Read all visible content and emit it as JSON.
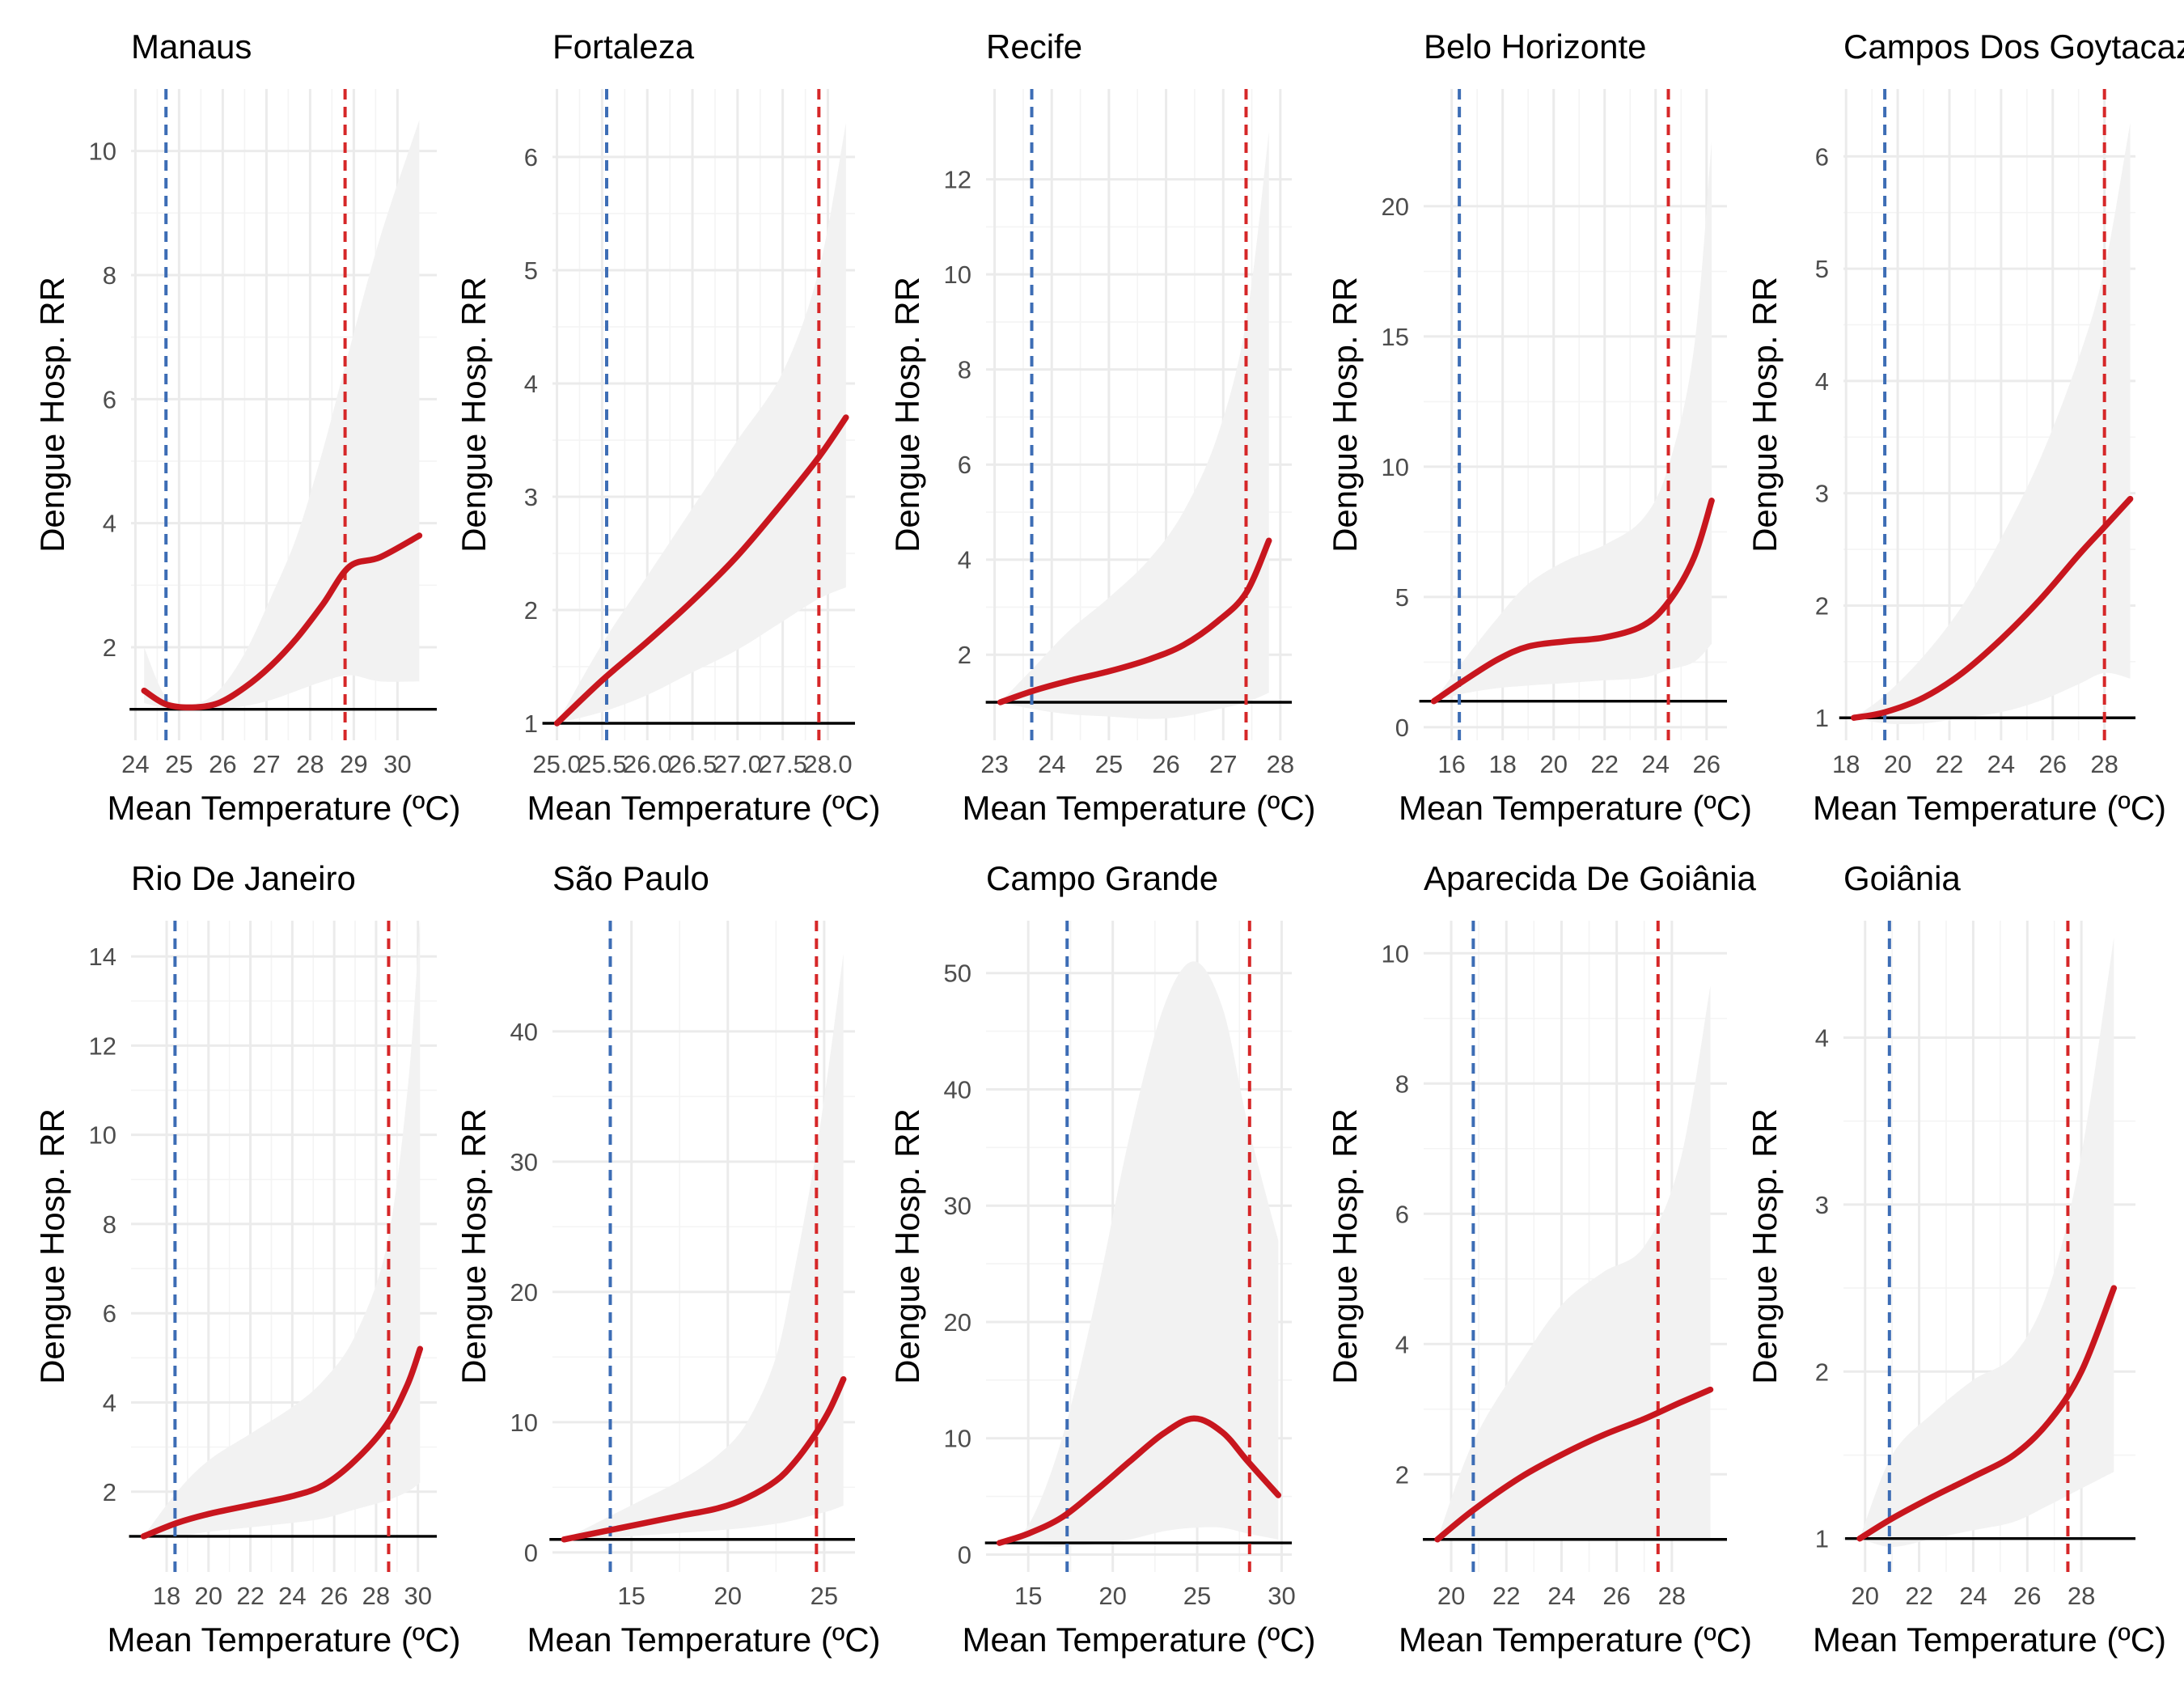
{
  "colors": {
    "curve": "#c8161e",
    "band": "#f2f2f2",
    "cold_line": "#3d6db5",
    "hot_line": "#d62728",
    "reference": "#000000",
    "grid": "#ebebeb"
  },
  "chart_data": [
    {
      "type": "line",
      "title": "Manaus",
      "xlabel": "Mean Temperature (ºC)",
      "ylabel": "Dengue Hosp. RR",
      "xlim": [
        23.9,
        30.9
      ],
      "ylim": [
        0.5,
        11
      ],
      "xticks": [
        24,
        25,
        26,
        27,
        28,
        29,
        30
      ],
      "xtick_labels": [
        "24",
        "25",
        "26",
        "27",
        "28",
        "29",
        "30"
      ],
      "yticks": [
        2,
        4,
        6,
        8,
        10
      ],
      "ytick_labels": [
        "2",
        "4",
        "6",
        "8",
        "10"
      ],
      "reference_y": 1,
      "vlines": {
        "cold": 24.7,
        "hot": 28.8
      },
      "x": [
        24.2,
        24.7,
        25.3,
        25.9,
        26.5,
        27.1,
        27.7,
        28.3,
        28.9,
        29.6,
        30.5
      ],
      "y": [
        1.3,
        1.08,
        1.03,
        1.1,
        1.35,
        1.7,
        2.15,
        2.7,
        3.3,
        3.45,
        3.8
      ],
      "ci_lower": [
        1.1,
        1.02,
        1.0,
        1.0,
        1.05,
        1.15,
        1.3,
        1.45,
        1.55,
        1.45,
        1.45
      ],
      "ci_upper": [
        2.0,
        1.2,
        1.08,
        1.3,
        1.9,
        2.8,
        3.8,
        5.2,
        6.8,
        8.6,
        10.5
      ]
    },
    {
      "type": "line",
      "title": "Fortaleza",
      "xlabel": "Mean Temperature (ºC)",
      "ylabel": "Dengue Hosp. RR",
      "xlim": [
        24.95,
        28.3
      ],
      "ylim": [
        0.85,
        6.6
      ],
      "xticks": [
        25.0,
        25.5,
        26.0,
        26.5,
        27.0,
        27.5,
        28.0
      ],
      "xtick_labels": [
        "25.0",
        "25.5",
        "26.0",
        "26.5",
        "27.0",
        "27.5",
        "28.0"
      ],
      "yticks": [
        1,
        2,
        3,
        4,
        5,
        6
      ],
      "ytick_labels": [
        "1",
        "2",
        "3",
        "4",
        "5",
        "6"
      ],
      "reference_y": 1,
      "vlines": {
        "cold": 25.55,
        "hot": 27.9
      },
      "x": [
        25.0,
        25.5,
        26.0,
        26.5,
        27.0,
        27.5,
        27.9,
        28.2
      ],
      "y": [
        1.0,
        1.38,
        1.72,
        2.08,
        2.48,
        2.95,
        3.35,
        3.7
      ],
      "ci_lower": [
        1.0,
        1.1,
        1.25,
        1.45,
        1.65,
        1.9,
        2.1,
        2.2
      ],
      "ci_upper": [
        1.0,
        1.7,
        2.3,
        2.9,
        3.5,
        4.1,
        5.0,
        6.3
      ]
    },
    {
      "type": "line",
      "title": "Recife",
      "xlabel": "Mean Temperature (ºC)",
      "ylabel": "Dengue Hosp. RR",
      "xlim": [
        22.85,
        28.2
      ],
      "ylim": [
        0.2,
        13.9
      ],
      "xticks": [
        23,
        24,
        25,
        26,
        27,
        28
      ],
      "xtick_labels": [
        "23",
        "24",
        "25",
        "26",
        "27",
        "28"
      ],
      "yticks": [
        2,
        4,
        6,
        8,
        10,
        12
      ],
      "ytick_labels": [
        "2",
        "4",
        "6",
        "8",
        "10",
        "12"
      ],
      "reference_y": 1,
      "vlines": {
        "cold": 23.65,
        "hot": 27.4
      },
      "x": [
        23.1,
        23.7,
        24.3,
        25.0,
        25.7,
        26.3,
        26.9,
        27.4,
        27.8
      ],
      "y": [
        1.0,
        1.25,
        1.45,
        1.65,
        1.9,
        2.2,
        2.7,
        3.3,
        4.4
      ],
      "ci_lower": [
        1.0,
        0.85,
        0.75,
        0.7,
        0.65,
        0.7,
        0.85,
        1.0,
        1.2
      ],
      "ci_upper": [
        1.0,
        1.75,
        2.5,
        3.2,
        4.0,
        5.0,
        6.6,
        9.0,
        13.0
      ]
    },
    {
      "type": "line",
      "title": "Belo Horizonte",
      "xlabel": "Mean Temperature (ºC)",
      "ylabel": "Dengue Hosp. RR",
      "xlim": [
        14.9,
        26.8
      ],
      "ylim": [
        -0.5,
        24.5
      ],
      "xticks": [
        16,
        18,
        20,
        22,
        24,
        26
      ],
      "xtick_labels": [
        "16",
        "18",
        "20",
        "22",
        "24",
        "26"
      ],
      "yticks": [
        0,
        5,
        10,
        15,
        20
      ],
      "ytick_labels": [
        "0",
        "5",
        "10",
        "15",
        "20"
      ],
      "reference_y": 1,
      "vlines": {
        "cold": 16.3,
        "hot": 24.5
      },
      "x": [
        15.3,
        16.5,
        17.8,
        19.0,
        20.5,
        22.0,
        23.5,
        24.5,
        25.5,
        26.2
      ],
      "y": [
        1.0,
        1.8,
        2.6,
        3.1,
        3.3,
        3.45,
        3.9,
        4.8,
        6.5,
        8.7
      ],
      "ci_lower": [
        1.0,
        1.3,
        1.5,
        1.6,
        1.7,
        1.8,
        1.9,
        2.2,
        2.5,
        3.2
      ],
      "ci_upper": [
        1.0,
        2.6,
        4.2,
        5.5,
        6.4,
        7.0,
        8.0,
        10.0,
        14.5,
        22.5
      ]
    },
    {
      "type": "line",
      "title": "Campos Dos Goytacazes",
      "xlabel": "Mean Temperature (ºC)",
      "ylabel": "Dengue Hosp. RR",
      "xlim": [
        17.9,
        29.2
      ],
      "ylim": [
        0.8,
        6.6
      ],
      "xticks": [
        18,
        20,
        22,
        24,
        26,
        28
      ],
      "xtick_labels": [
        "18",
        "20",
        "22",
        "24",
        "26",
        "28"
      ],
      "yticks": [
        1,
        2,
        3,
        4,
        5,
        6
      ],
      "ytick_labels": [
        "1",
        "2",
        "3",
        "4",
        "5",
        "6"
      ],
      "reference_y": 1,
      "vlines": {
        "cold": 19.5,
        "hot": 28.0
      },
      "x": [
        18.3,
        19.5,
        21.0,
        22.5,
        24.0,
        25.5,
        27.0,
        28.0,
        29.0
      ],
      "y": [
        1.0,
        1.05,
        1.18,
        1.4,
        1.7,
        2.05,
        2.45,
        2.7,
        2.95
      ],
      "ci_lower": [
        1.0,
        0.95,
        0.95,
        1.0,
        1.05,
        1.15,
        1.3,
        1.4,
        1.35
      ],
      "ci_upper": [
        1.0,
        1.2,
        1.55,
        2.0,
        2.6,
        3.3,
        4.2,
        5.0,
        6.3
      ]
    },
    {
      "type": "line",
      "title": "Rio De Janeiro",
      "xlabel": "Mean Temperature (ºC)",
      "ylabel": "Dengue Hosp. RR",
      "xlim": [
        16.3,
        30.9
      ],
      "ylim": [
        0.2,
        14.8
      ],
      "xticks": [
        18,
        20,
        22,
        24,
        26,
        28,
        30
      ],
      "xtick_labels": [
        "18",
        "20",
        "22",
        "24",
        "26",
        "28",
        "30"
      ],
      "yticks": [
        2,
        4,
        6,
        8,
        10,
        12,
        14
      ],
      "ytick_labels": [
        "2",
        "4",
        "6",
        "8",
        "10",
        "12",
        "14"
      ],
      "reference_y": 1,
      "vlines": {
        "cold": 18.4,
        "hot": 28.6
      },
      "x": [
        16.9,
        18.5,
        20.0,
        22.0,
        24.0,
        25.5,
        27.0,
        28.5,
        29.5,
        30.1
      ],
      "y": [
        1.0,
        1.3,
        1.5,
        1.7,
        1.9,
        2.15,
        2.7,
        3.5,
        4.4,
        5.2
      ],
      "ci_lower": [
        1.0,
        1.0,
        1.1,
        1.2,
        1.3,
        1.4,
        1.6,
        1.8,
        2.0,
        2.2
      ],
      "ci_upper": [
        1.0,
        2.0,
        2.7,
        3.3,
        3.9,
        4.5,
        5.5,
        7.5,
        11.0,
        14.8
      ]
    },
    {
      "type": "line",
      "title": "São Paulo",
      "xlabel": "Mean Temperature (ºC)",
      "ylabel": "Dengue Hosp. RR",
      "xlim": [
        10.9,
        26.6
      ],
      "ylim": [
        -1.5,
        48.5
      ],
      "xticks": [
        15,
        20,
        25
      ],
      "xtick_labels": [
        "15",
        "20",
        "25"
      ],
      "yticks": [
        0,
        10,
        20,
        30,
        40
      ],
      "ytick_labels": [
        "0",
        "10",
        "20",
        "30",
        "40"
      ],
      "reference_y": 1,
      "vlines": {
        "cold": 13.9,
        "hot": 24.6
      },
      "x": [
        11.5,
        13.5,
        15.5,
        17.5,
        19.5,
        21.0,
        22.5,
        23.5,
        24.5,
        25.3,
        26.0
      ],
      "y": [
        1.0,
        1.6,
        2.2,
        2.8,
        3.4,
        4.2,
        5.5,
        7.0,
        9.0,
        11.0,
        13.3
      ],
      "ci_lower": [
        1.0,
        1.1,
        1.3,
        1.5,
        1.7,
        1.9,
        2.2,
        2.5,
        2.9,
        3.2,
        3.6
      ],
      "ci_upper": [
        1.0,
        2.5,
        4.0,
        5.5,
        7.5,
        10.0,
        15.0,
        22.0,
        30.0,
        38.0,
        46.0
      ]
    },
    {
      "type": "line",
      "title": "Campo Grande",
      "xlabel": "Mean Temperature (ºC)",
      "ylabel": "Dengue Hosp. RR",
      "xlim": [
        12.5,
        30.6
      ],
      "ylim": [
        -1.5,
        54.5
      ],
      "xticks": [
        15,
        20,
        25,
        30
      ],
      "xtick_labels": [
        "15",
        "20",
        "25",
        "30"
      ],
      "yticks": [
        0,
        10,
        20,
        30,
        40,
        50
      ],
      "ytick_labels": [
        "0",
        "10",
        "20",
        "30",
        "40",
        "50"
      ],
      "reference_y": 1,
      "vlines": {
        "cold": 17.3,
        "hot": 28.1
      },
      "x": [
        13.3,
        15.0,
        17.0,
        19.0,
        21.0,
        23.0,
        24.8,
        26.5,
        28.0,
        29.8
      ],
      "y": [
        1.0,
        1.8,
        3.2,
        5.5,
        8.0,
        10.4,
        11.7,
        10.5,
        8.0,
        5.1
      ],
      "ci_lower": [
        1.0,
        0.8,
        0.7,
        0.9,
        1.3,
        2.0,
        2.3,
        2.3,
        1.8,
        1.3
      ],
      "ci_upper": [
        1.0,
        2.5,
        10.0,
        22.0,
        36.0,
        47.0,
        51.0,
        47.0,
        37.0,
        27.0
      ]
    },
    {
      "type": "line",
      "title": "Aparecida De Goiânia",
      "xlabel": "Mean Temperature (ºC)",
      "ylabel": "Dengue Hosp. RR",
      "xlim": [
        19.0,
        30.0
      ],
      "ylim": [
        0.5,
        10.5
      ],
      "xticks": [
        20,
        22,
        24,
        26,
        28
      ],
      "xtick_labels": [
        "20",
        "22",
        "24",
        "26",
        "28"
      ],
      "yticks": [
        2,
        4,
        6,
        8,
        10
      ],
      "ytick_labels": [
        "2",
        "4",
        "6",
        "8",
        "10"
      ],
      "reference_y": 1,
      "vlines": {
        "cold": 20.8,
        "hot": 27.5
      },
      "x": [
        19.5,
        20.8,
        22.5,
        24.0,
        25.5,
        27.0,
        28.3,
        29.4
      ],
      "y": [
        1.0,
        1.45,
        1.95,
        2.3,
        2.6,
        2.85,
        3.1,
        3.3
      ],
      "ci_lower": [
        1.0,
        1.0,
        1.0,
        1.0,
        1.0,
        1.0,
        1.0,
        1.0
      ],
      "ci_upper": [
        1.0,
        2.5,
        3.7,
        4.6,
        5.1,
        5.5,
        6.8,
        9.5
      ]
    },
    {
      "type": "line",
      "title": "Goiânia",
      "xlabel": "Mean Temperature (ºC)",
      "ylabel": "Dengue Hosp. RR",
      "xlim": [
        19.2,
        30.0
      ],
      "ylim": [
        0.8,
        4.7
      ],
      "xticks": [
        20,
        22,
        24,
        26,
        28
      ],
      "xtick_labels": [
        "20",
        "22",
        "24",
        "26",
        "28"
      ],
      "yticks": [
        1,
        2,
        3,
        4
      ],
      "ytick_labels": [
        "1",
        "2",
        "3",
        "4"
      ],
      "reference_y": 1,
      "vlines": {
        "cold": 20.9,
        "hot": 27.5
      },
      "x": [
        19.8,
        21.0,
        22.5,
        24.0,
        25.5,
        26.8,
        28.0,
        29.2
      ],
      "y": [
        1.0,
        1.12,
        1.25,
        1.37,
        1.5,
        1.7,
        2.0,
        2.5
      ],
      "ci_lower": [
        1.0,
        0.95,
        1.0,
        1.05,
        1.1,
        1.2,
        1.3,
        1.4
      ],
      "ci_upper": [
        1.0,
        1.5,
        1.75,
        1.95,
        2.1,
        2.5,
        3.3,
        4.6
      ]
    }
  ]
}
